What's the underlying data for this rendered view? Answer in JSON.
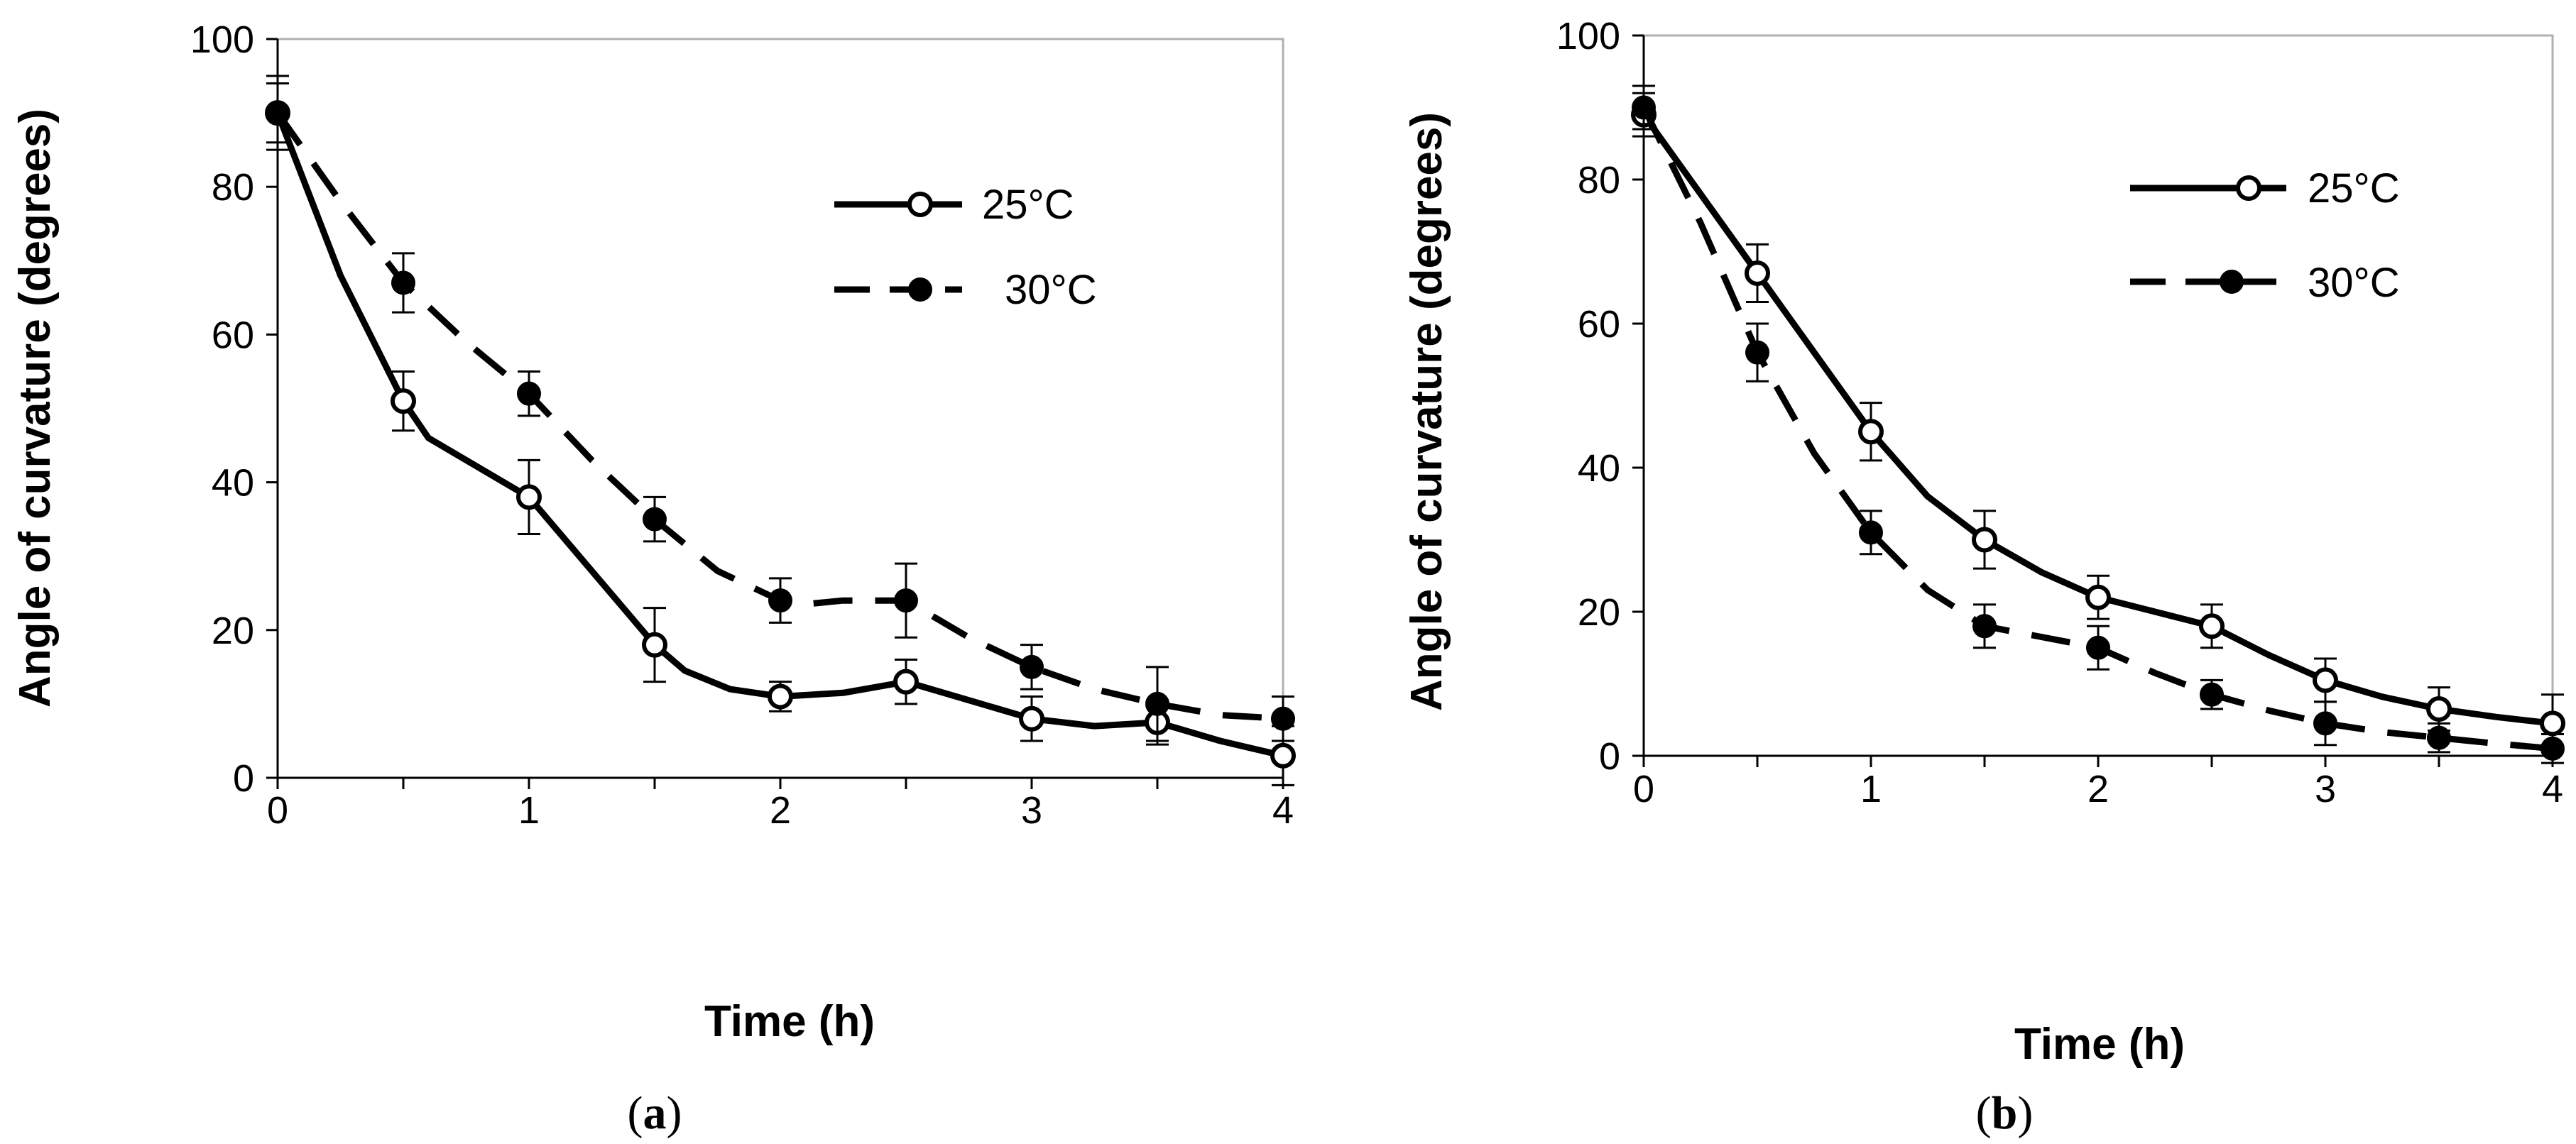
{
  "chart_data": [
    {
      "type": "line",
      "panel_label": "a",
      "caption": {
        "open": "(",
        "letter": "a",
        "close": ")"
      },
      "xlabel": "Time  (h)",
      "ylabel": "Angle of curvature (degrees)",
      "xlim": [
        0,
        4
      ],
      "ylim": [
        0,
        100
      ],
      "xticks": [
        "0",
        "1",
        "2",
        "3",
        "4"
      ],
      "yticks": [
        "0",
        "20",
        "40",
        "60",
        "80",
        "100"
      ],
      "grid": false,
      "legend_position": "top-right",
      "series": [
        {
          "name": "25°C",
          "style": "solid",
          "marker": "open-circle",
          "x": [
            0,
            0.5,
            1,
            1.5,
            2,
            2.5,
            3,
            3.5,
            4
          ],
          "y": [
            90,
            51,
            38,
            18,
            11,
            13,
            8,
            7.5,
            3
          ],
          "err": [
            4,
            4,
            5,
            5,
            2,
            3,
            3,
            3,
            4
          ],
          "curve": [
            [
              0,
              90
            ],
            [
              0.25,
              68
            ],
            [
              0.5,
              51
            ],
            [
              0.6,
              46
            ],
            [
              0.75,
              43
            ],
            [
              0.9,
              40
            ],
            [
              1,
              38
            ],
            [
              1.25,
              28
            ],
            [
              1.5,
              18
            ],
            [
              1.62,
              14.5
            ],
            [
              1.8,
              12
            ],
            [
              2,
              11
            ],
            [
              2.25,
              11.5
            ],
            [
              2.5,
              13
            ],
            [
              2.75,
              10.5
            ],
            [
              3,
              8
            ],
            [
              3.25,
              7
            ],
            [
              3.5,
              7.5
            ],
            [
              3.75,
              5
            ],
            [
              4,
              3
            ]
          ]
        },
        {
          "name": "30°C",
          "style": "dashed",
          "marker": "filled-circle",
          "x": [
            0,
            0.5,
            1,
            1.5,
            2,
            2.5,
            3,
            3.5,
            4
          ],
          "y": [
            90,
            67,
            52,
            35,
            24,
            24,
            15,
            10,
            8
          ],
          "err": [
            5,
            4,
            3,
            3,
            3,
            5,
            3,
            5,
            3
          ],
          "curve": [
            [
              0,
              90
            ],
            [
              0.25,
              78
            ],
            [
              0.5,
              67
            ],
            [
              0.75,
              59
            ],
            [
              1,
              52
            ],
            [
              1.25,
              43
            ],
            [
              1.5,
              35
            ],
            [
              1.75,
              28
            ],
            [
              2,
              24
            ],
            [
              2.1,
              23.5
            ],
            [
              2.25,
              24
            ],
            [
              2.5,
              24
            ],
            [
              2.75,
              19
            ],
            [
              3,
              15
            ],
            [
              3.25,
              12
            ],
            [
              3.5,
              10
            ],
            [
              3.75,
              8.5
            ],
            [
              4,
              8
            ]
          ]
        }
      ]
    },
    {
      "type": "line",
      "panel_label": "b",
      "caption": {
        "open": "(",
        "letter": "b",
        "close": ")"
      },
      "xlabel": "Time  (h)",
      "ylabel": "Angle of curvature (degrees)",
      "xlim": [
        0,
        4
      ],
      "ylim": [
        0,
        100
      ],
      "xticks": [
        "0",
        "1",
        "2",
        "3",
        "4"
      ],
      "yticks": [
        "0",
        "20",
        "40",
        "60",
        "80",
        "100"
      ],
      "grid": false,
      "legend_position": "top-right",
      "series": [
        {
          "name": "25°C",
          "style": "solid",
          "marker": "open-circle",
          "x": [
            0,
            0.5,
            1,
            1.5,
            2,
            2.5,
            3,
            3.5,
            4
          ],
          "y": [
            89,
            67,
            45,
            30,
            22,
            18,
            10.5,
            6.5,
            4.5
          ],
          "err": [
            3,
            4,
            4,
            4,
            3,
            3,
            3,
            3,
            4
          ],
          "curve": [
            [
              0,
              89
            ],
            [
              0.25,
              78
            ],
            [
              0.5,
              67
            ],
            [
              0.75,
              56
            ],
            [
              1,
              45
            ],
            [
              1.25,
              36
            ],
            [
              1.5,
              30
            ],
            [
              1.75,
              25.5
            ],
            [
              2,
              22
            ],
            [
              2.25,
              20
            ],
            [
              2.5,
              18
            ],
            [
              2.75,
              14
            ],
            [
              3,
              10.5
            ],
            [
              3.25,
              8.2
            ],
            [
              3.5,
              6.5
            ],
            [
              3.75,
              5.4
            ],
            [
              4,
              4.5
            ]
          ]
        },
        {
          "name": "30°C",
          "style": "dashed",
          "marker": "filled-circle",
          "x": [
            0,
            0.5,
            1,
            1.5,
            2,
            2.5,
            3,
            3.5,
            4
          ],
          "y": [
            90,
            56,
            31,
            18,
            15,
            8.5,
            4.5,
            2.5,
            1
          ],
          "err": [
            3,
            4,
            3,
            3,
            3,
            2,
            3,
            2,
            2
          ],
          "curve": [
            [
              0,
              90
            ],
            [
              0.25,
              74
            ],
            [
              0.5,
              56
            ],
            [
              0.75,
              42
            ],
            [
              1,
              31
            ],
            [
              1.25,
              23
            ],
            [
              1.5,
              18
            ],
            [
              1.75,
              16.5
            ],
            [
              2,
              15
            ],
            [
              2.25,
              11.5
            ],
            [
              2.5,
              8.5
            ],
            [
              2.75,
              6.3
            ],
            [
              3,
              4.5
            ],
            [
              3.25,
              3.3
            ],
            [
              3.5,
              2.5
            ],
            [
              3.75,
              1.7
            ],
            [
              4,
              1
            ]
          ]
        }
      ]
    }
  ]
}
